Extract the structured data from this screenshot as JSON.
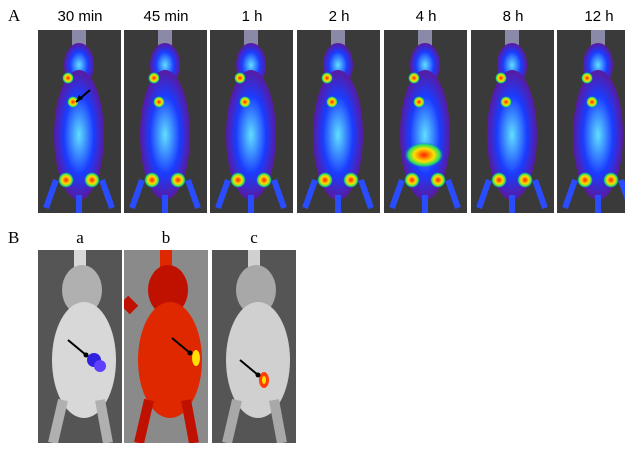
{
  "panel_a": {
    "label": "A",
    "timepoints": [
      "30 min",
      "45 min",
      "1 h",
      "2 h",
      "4 h",
      "8 h",
      "12 h"
    ]
  },
  "panel_b": {
    "label": "B",
    "subpanels": [
      "a",
      "b",
      "c"
    ]
  },
  "colors": {
    "blue_signal": "#1a3cff",
    "hot_signal": "#ff2000",
    "red_overlay": "#c81000",
    "background_gray": "#3a3a3a"
  }
}
